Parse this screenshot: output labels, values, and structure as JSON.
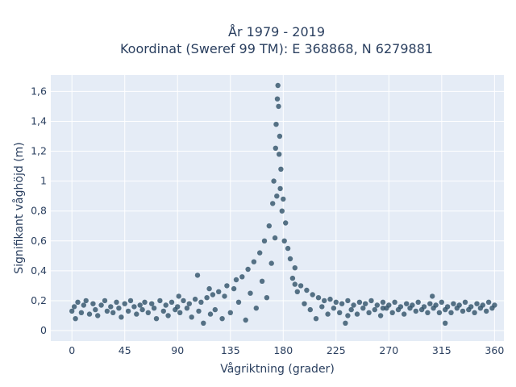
{
  "chart_data": {
    "type": "scatter",
    "title": "År 1979 - 2019",
    "subtitle": "Koordinat (Sweref 99 TM): E 368868, N 6279881",
    "xlabel": "Vågriktning (grader)",
    "ylabel": "Signifikant våghöjd (m)",
    "xlim": [
      -18,
      368
    ],
    "ylim": [
      -0.07,
      1.71
    ],
    "x_ticks": [
      0,
      45,
      90,
      135,
      180,
      225,
      270,
      315,
      360
    ],
    "x_tick_labels": [
      "0",
      "45",
      "90",
      "135",
      "180",
      "225",
      "270",
      "315",
      "360"
    ],
    "y_ticks": [
      0,
      0.2,
      0.4,
      0.6,
      0.8,
      1.0,
      1.2,
      1.4,
      1.6
    ],
    "y_tick_labels": [
      "0",
      "0,2",
      "0,4",
      "0,6",
      "0,8",
      "1",
      "1,2",
      "1,4",
      "1,6"
    ],
    "grid": true,
    "legend": "none",
    "colors": {
      "marker": "#2f5168",
      "plot_bg": "#e5ecf6",
      "grid": "#ffffff"
    },
    "series": [
      {
        "points": [
          [
            0,
            0.13
          ],
          [
            2,
            0.16
          ],
          [
            3,
            0.08
          ],
          [
            5,
            0.19
          ],
          [
            8,
            0.12
          ],
          [
            10,
            0.17
          ],
          [
            12,
            0.2
          ],
          [
            15,
            0.11
          ],
          [
            18,
            0.18
          ],
          [
            20,
            0.14
          ],
          [
            22,
            0.1
          ],
          [
            25,
            0.17
          ],
          [
            28,
            0.2
          ],
          [
            30,
            0.13
          ],
          [
            33,
            0.16
          ],
          [
            35,
            0.12
          ],
          [
            38,
            0.19
          ],
          [
            40,
            0.15
          ],
          [
            42,
            0.09
          ],
          [
            45,
            0.18
          ],
          [
            48,
            0.13
          ],
          [
            50,
            0.2
          ],
          [
            53,
            0.16
          ],
          [
            55,
            0.11
          ],
          [
            58,
            0.17
          ],
          [
            60,
            0.14
          ],
          [
            62,
            0.19
          ],
          [
            65,
            0.12
          ],
          [
            68,
            0.18
          ],
          [
            70,
            0.15
          ],
          [
            72,
            0.08
          ],
          [
            75,
            0.2
          ],
          [
            78,
            0.13
          ],
          [
            80,
            0.17
          ],
          [
            82,
            0.1
          ],
          [
            85,
            0.19
          ],
          [
            88,
            0.14
          ],
          [
            90,
            0.16
          ],
          [
            92,
            0.12
          ],
          [
            95,
            0.2
          ],
          [
            98,
            0.15
          ],
          [
            100,
            0.18
          ],
          [
            102,
            0.09
          ],
          [
            105,
            0.21
          ],
          [
            108,
            0.13
          ],
          [
            110,
            0.19
          ],
          [
            112,
            0.05
          ],
          [
            115,
            0.22
          ],
          [
            118,
            0.11
          ],
          [
            120,
            0.24
          ],
          [
            122,
            0.14
          ],
          [
            125,
            0.26
          ],
          [
            128,
            0.08
          ],
          [
            130,
            0.23
          ],
          [
            132,
            0.3
          ],
          [
            135,
            0.12
          ],
          [
            138,
            0.28
          ],
          [
            140,
            0.34
          ],
          [
            142,
            0.19
          ],
          [
            145,
            0.36
          ],
          [
            148,
            0.07
          ],
          [
            150,
            0.41
          ],
          [
            152,
            0.25
          ],
          [
            155,
            0.46
          ],
          [
            157,
            0.15
          ],
          [
            160,
            0.52
          ],
          [
            162,
            0.33
          ],
          [
            164,
            0.6
          ],
          [
            166,
            0.22
          ],
          [
            168,
            0.7
          ],
          [
            170,
            0.45
          ],
          [
            171,
            0.85
          ],
          [
            172,
            1.0
          ],
          [
            173,
            0.62
          ],
          [
            173.5,
            1.22
          ],
          [
            174,
            1.38
          ],
          [
            174.5,
            0.9
          ],
          [
            175,
            1.55
          ],
          [
            175.5,
            1.64
          ],
          [
            176,
            1.5
          ],
          [
            176.5,
            1.18
          ],
          [
            177,
            1.3
          ],
          [
            177.5,
            0.95
          ],
          [
            178,
            1.08
          ],
          [
            179,
            0.8
          ],
          [
            180,
            0.88
          ],
          [
            181,
            0.6
          ],
          [
            182,
            0.72
          ],
          [
            184,
            0.55
          ],
          [
            186,
            0.48
          ],
          [
            188,
            0.35
          ],
          [
            190,
            0.42
          ],
          [
            192,
            0.26
          ],
          [
            195,
            0.3
          ],
          [
            198,
            0.18
          ],
          [
            200,
            0.27
          ],
          [
            203,
            0.14
          ],
          [
            205,
            0.24
          ],
          [
            208,
            0.08
          ],
          [
            210,
            0.22
          ],
          [
            213,
            0.16
          ],
          [
            215,
            0.2
          ],
          [
            218,
            0.11
          ],
          [
            220,
            0.21
          ],
          [
            223,
            0.15
          ],
          [
            225,
            0.19
          ],
          [
            228,
            0.12
          ],
          [
            230,
            0.18
          ],
          [
            233,
            0.05
          ],
          [
            235,
            0.2
          ],
          [
            238,
            0.14
          ],
          [
            240,
            0.17
          ],
          [
            243,
            0.11
          ],
          [
            245,
            0.19
          ],
          [
            248,
            0.15
          ],
          [
            250,
            0.18
          ],
          [
            253,
            0.12
          ],
          [
            255,
            0.2
          ],
          [
            258,
            0.14
          ],
          [
            260,
            0.17
          ],
          [
            263,
            0.1
          ],
          [
            265,
            0.19
          ],
          [
            268,
            0.15
          ],
          [
            270,
            0.17
          ],
          [
            273,
            0.12
          ],
          [
            275,
            0.19
          ],
          [
            278,
            0.14
          ],
          [
            280,
            0.16
          ],
          [
            283,
            0.11
          ],
          [
            285,
            0.18
          ],
          [
            288,
            0.15
          ],
          [
            290,
            0.17
          ],
          [
            293,
            0.13
          ],
          [
            295,
            0.19
          ],
          [
            298,
            0.14
          ],
          [
            300,
            0.16
          ],
          [
            303,
            0.12
          ],
          [
            305,
            0.18
          ],
          [
            308,
            0.15
          ],
          [
            310,
            0.17
          ],
          [
            313,
            0.12
          ],
          [
            315,
            0.19
          ],
          [
            318,
            0.14
          ],
          [
            320,
            0.16
          ],
          [
            323,
            0.12
          ],
          [
            325,
            0.18
          ],
          [
            328,
            0.15
          ],
          [
            330,
            0.17
          ],
          [
            333,
            0.13
          ],
          [
            335,
            0.19
          ],
          [
            338,
            0.14
          ],
          [
            340,
            0.16
          ],
          [
            343,
            0.12
          ],
          [
            345,
            0.18
          ],
          [
            348,
            0.15
          ],
          [
            350,
            0.17
          ],
          [
            353,
            0.13
          ],
          [
            355,
            0.19
          ],
          [
            358,
            0.15
          ],
          [
            360,
            0.17
          ],
          [
            107,
            0.37
          ],
          [
            235,
            0.1
          ],
          [
            265,
            0.15
          ],
          [
            307,
            0.23
          ],
          [
            318,
            0.05
          ],
          [
            91,
            0.23
          ],
          [
            117,
            0.28
          ],
          [
            190,
            0.31
          ]
        ]
      }
    ]
  }
}
